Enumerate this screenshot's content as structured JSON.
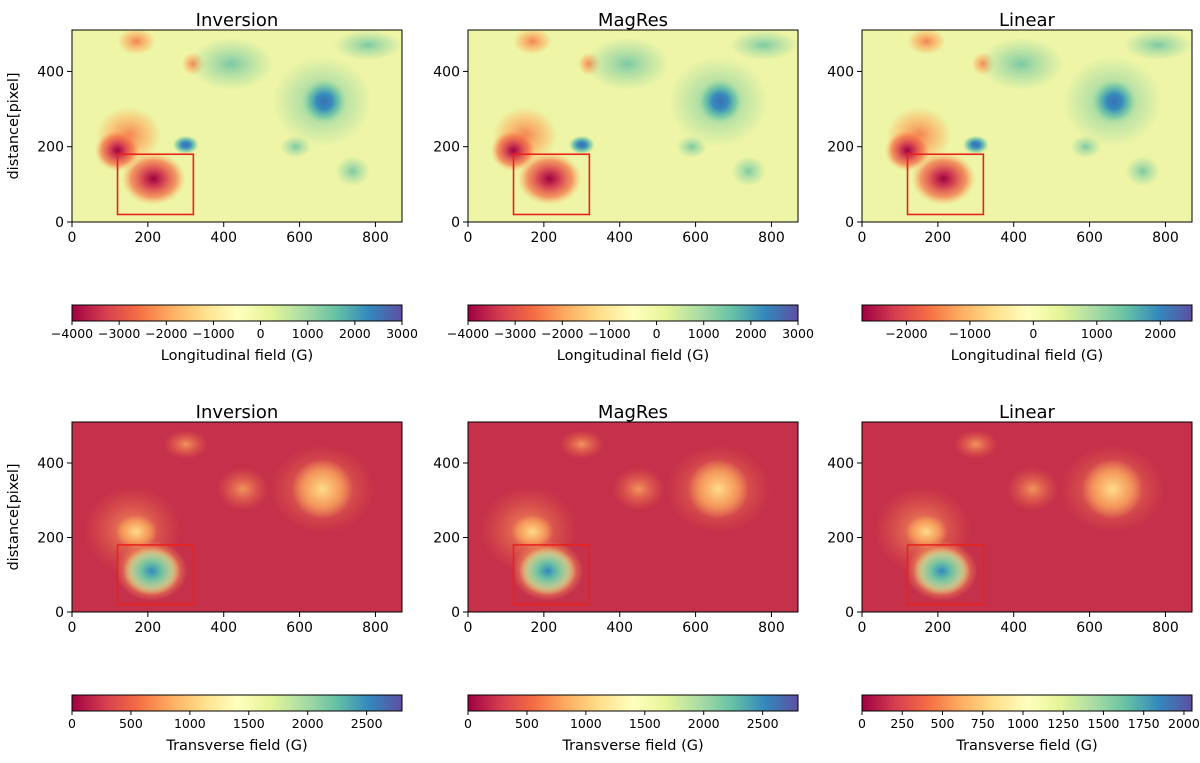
{
  "chart_data": [
    {
      "type": "heatmap",
      "title": "Inversion",
      "quantity": "longitudinal",
      "ylabel": "distance[pixel]",
      "xlim": [
        0,
        870
      ],
      "ylim": [
        0,
        510
      ],
      "xticks": [
        0,
        200,
        400,
        600,
        800
      ],
      "yticks": [
        0,
        200,
        400
      ],
      "roi_box": {
        "x": [
          120,
          320
        ],
        "y": [
          20,
          180
        ],
        "color": "#e8231c"
      },
      "colorbar": {
        "label": "Longitudinal field (G)",
        "range": [
          -4000,
          3000
        ],
        "ticks": [
          -4000,
          -3000,
          -2000,
          -1000,
          0,
          1000,
          2000,
          3000
        ],
        "tick_labels": [
          "−4000",
          "−3000",
          "−2000",
          "−1000",
          "0",
          "1000",
          "2000",
          "3000"
        ]
      }
    },
    {
      "type": "heatmap",
      "title": "MagRes",
      "quantity": "longitudinal",
      "ylabel": "",
      "xlim": [
        0,
        870
      ],
      "ylim": [
        0,
        510
      ],
      "xticks": [
        0,
        200,
        400,
        600,
        800
      ],
      "yticks": [
        0,
        200,
        400
      ],
      "roi_box": {
        "x": [
          120,
          320
        ],
        "y": [
          20,
          180
        ],
        "color": "#e8231c"
      },
      "colorbar": {
        "label": "Longitudinal field (G)",
        "range": [
          -4000,
          3000
        ],
        "ticks": [
          -4000,
          -3000,
          -2000,
          -1000,
          0,
          1000,
          2000,
          3000
        ],
        "tick_labels": [
          "−4000",
          "−3000",
          "−2000",
          "−1000",
          "0",
          "1000",
          "2000",
          "3000"
        ]
      }
    },
    {
      "type": "heatmap",
      "title": "Linear",
      "quantity": "longitudinal",
      "ylabel": "",
      "xlim": [
        0,
        870
      ],
      "ylim": [
        0,
        510
      ],
      "xticks": [
        0,
        200,
        400,
        600,
        800
      ],
      "yticks": [
        0,
        200,
        400
      ],
      "roi_box": {
        "x": [
          120,
          320
        ],
        "y": [
          20,
          180
        ],
        "color": "#e8231c"
      },
      "colorbar": {
        "label": "Longitudinal field (G)",
        "range": [
          -2700,
          2500
        ],
        "ticks": [
          -2000,
          -1000,
          0,
          1000,
          2000
        ],
        "tick_labels": [
          "−2000",
          "−1000",
          "0",
          "1000",
          "2000"
        ]
      }
    },
    {
      "type": "heatmap",
      "title": "Inversion",
      "quantity": "transverse",
      "ylabel": "distance[pixel]",
      "xlim": [
        0,
        870
      ],
      "ylim": [
        0,
        510
      ],
      "xticks": [
        0,
        200,
        400,
        600,
        800
      ],
      "yticks": [
        0,
        200,
        400
      ],
      "roi_box": {
        "x": [
          120,
          320
        ],
        "y": [
          20,
          180
        ],
        "color": "#e8231c"
      },
      "colorbar": {
        "label": "Transverse field (G)",
        "range": [
          0,
          2800
        ],
        "ticks": [
          0,
          500,
          1000,
          1500,
          2000,
          2500
        ],
        "tick_labels": [
          "0",
          "500",
          "1000",
          "1500",
          "2000",
          "2500"
        ]
      }
    },
    {
      "type": "heatmap",
      "title": "MagRes",
      "quantity": "transverse",
      "ylabel": "",
      "xlim": [
        0,
        870
      ],
      "ylim": [
        0,
        510
      ],
      "xticks": [
        0,
        200,
        400,
        600,
        800
      ],
      "yticks": [
        0,
        200,
        400
      ],
      "roi_box": {
        "x": [
          120,
          320
        ],
        "y": [
          20,
          180
        ],
        "color": "#e8231c"
      },
      "colorbar": {
        "label": "Transverse field (G)",
        "range": [
          0,
          2800
        ],
        "ticks": [
          0,
          500,
          1000,
          1500,
          2000,
          2500
        ],
        "tick_labels": [
          "0",
          "500",
          "1000",
          "1500",
          "2000",
          "2500"
        ]
      }
    },
    {
      "type": "heatmap",
      "title": "Linear",
      "quantity": "transverse",
      "ylabel": "",
      "xlim": [
        0,
        870
      ],
      "ylim": [
        0,
        510
      ],
      "xticks": [
        0,
        200,
        400,
        600,
        800
      ],
      "yticks": [
        0,
        200,
        400
      ],
      "roi_box": {
        "x": [
          120,
          320
        ],
        "y": [
          20,
          180
        ],
        "color": "#e8231c"
      },
      "colorbar": {
        "label": "Transverse field (G)",
        "range": [
          0,
          2050
        ],
        "ticks": [
          0,
          250,
          500,
          750,
          1000,
          1250,
          1500,
          1750,
          2000
        ],
        "tick_labels": [
          "0",
          "250",
          "500",
          "750",
          "1000",
          "1250",
          "1500",
          "1750",
          "2000"
        ]
      }
    }
  ],
  "colormap": {
    "name": "Spectral",
    "stops": [
      "#9e0142",
      "#d53e4f",
      "#f46d43",
      "#fdae61",
      "#fee08b",
      "#ffffbf",
      "#e6f598",
      "#abdda4",
      "#66c2a5",
      "#3288bd",
      "#5e4fa2"
    ]
  }
}
